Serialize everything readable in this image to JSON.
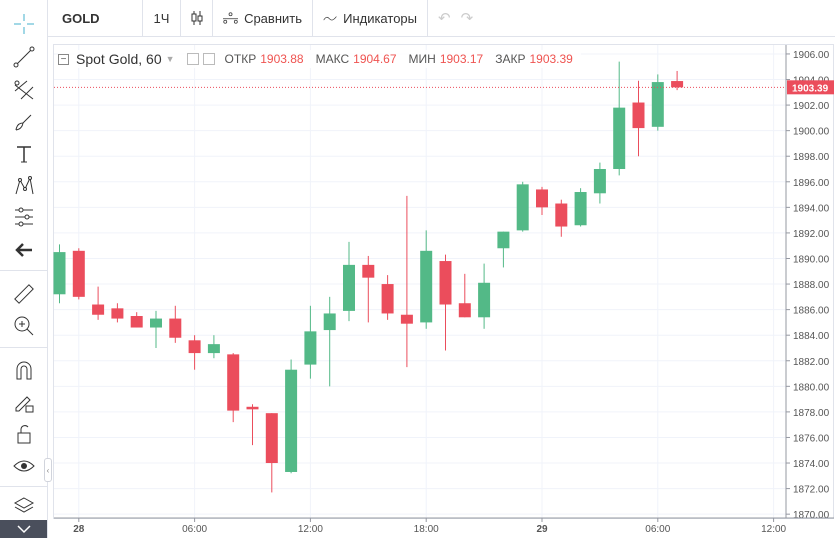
{
  "toolbar": {
    "symbol": "GOLD",
    "interval": "1Ч",
    "compare_label": "Сравнить",
    "indicators_label": "Индикаторы"
  },
  "legend": {
    "title": "Spot Gold, 60",
    "open_label": "ОТКР",
    "open": "1903.88",
    "high_label": "МАКС",
    "high": "1904.67",
    "low_label": "МИН",
    "low": "1903.17",
    "close_label": "ЗАКР",
    "close": "1903.39"
  },
  "sidebar": {
    "icons": [
      "crosshair-icon",
      "trend-line-icon",
      "fib-icon",
      "brush-icon",
      "text-icon",
      "pattern-icon",
      "measure-icon",
      "back-arrow-icon",
      "ruler-icon",
      "zoom-in-icon",
      "magnet-icon",
      "lock-drawing-icon",
      "unlock-icon",
      "eye-icon",
      "layers-icon"
    ]
  },
  "colors": {
    "up": "#53b987",
    "down": "#eb4d5c",
    "last_price_tag": "#eb4d5c"
  },
  "chart_data": {
    "type": "candlestick",
    "title": "Spot Gold, 60",
    "ylim": [
      1869.7,
      1906.7
    ],
    "y_ticks": [
      "1870.00",
      "1872.00",
      "1874.00",
      "1876.00",
      "1878.00",
      "1880.00",
      "1882.00",
      "1884.00",
      "1886.00",
      "1888.00",
      "1890.00",
      "1892.00",
      "1894.00",
      "1896.00",
      "1898.00",
      "1900.00",
      "1902.00",
      "1904.00",
      "1906.00"
    ],
    "x_ticks": [
      "28",
      "06:00",
      "12:00",
      "18:00",
      "29",
      "06:00",
      "12:00"
    ],
    "last_price": "1903.39",
    "grid": true,
    "candles": [
      {
        "o": 1887.2,
        "h": 1891.1,
        "l": 1886.5,
        "c": 1890.5
      },
      {
        "o": 1890.6,
        "h": 1890.8,
        "l": 1886.8,
        "c": 1887.0
      },
      {
        "o": 1886.4,
        "h": 1887.8,
        "l": 1885.2,
        "c": 1885.6
      },
      {
        "o": 1886.1,
        "h": 1886.5,
        "l": 1885.0,
        "c": 1885.3
      },
      {
        "o": 1885.5,
        "h": 1885.8,
        "l": 1884.6,
        "c": 1884.6
      },
      {
        "o": 1884.6,
        "h": 1885.9,
        "l": 1883.0,
        "c": 1885.3
      },
      {
        "o": 1885.3,
        "h": 1886.3,
        "l": 1883.4,
        "c": 1883.8
      },
      {
        "o": 1883.6,
        "h": 1884.0,
        "l": 1881.3,
        "c": 1882.6
      },
      {
        "o": 1882.6,
        "h": 1884.0,
        "l": 1882.2,
        "c": 1883.3
      },
      {
        "o": 1882.5,
        "h": 1882.6,
        "l": 1877.2,
        "c": 1878.1
      },
      {
        "o": 1878.4,
        "h": 1878.6,
        "l": 1875.4,
        "c": 1878.2
      },
      {
        "o": 1877.9,
        "h": 1877.9,
        "l": 1871.7,
        "c": 1874.0
      },
      {
        "o": 1873.3,
        "h": 1882.1,
        "l": 1873.2,
        "c": 1881.3
      },
      {
        "o": 1881.7,
        "h": 1886.3,
        "l": 1880.6,
        "c": 1884.3
      },
      {
        "o": 1884.4,
        "h": 1887.0,
        "l": 1880.0,
        "c": 1885.7
      },
      {
        "o": 1885.9,
        "h": 1891.3,
        "l": 1885.1,
        "c": 1889.5
      },
      {
        "o": 1889.5,
        "h": 1890.2,
        "l": 1885.0,
        "c": 1888.5
      },
      {
        "o": 1888.0,
        "h": 1888.7,
        "l": 1885.2,
        "c": 1885.7
      },
      {
        "o": 1885.6,
        "h": 1894.9,
        "l": 1881.5,
        "c": 1884.9
      },
      {
        "o": 1885.0,
        "h": 1892.2,
        "l": 1884.5,
        "c": 1890.6
      },
      {
        "o": 1889.8,
        "h": 1890.3,
        "l": 1882.8,
        "c": 1886.4
      },
      {
        "o": 1886.5,
        "h": 1888.8,
        "l": 1885.4,
        "c": 1885.4
      },
      {
        "o": 1885.4,
        "h": 1889.6,
        "l": 1884.5,
        "c": 1888.1
      },
      {
        "o": 1890.8,
        "h": 1892.1,
        "l": 1889.3,
        "c": 1892.1
      },
      {
        "o": 1892.2,
        "h": 1896.0,
        "l": 1892.1,
        "c": 1895.8
      },
      {
        "o": 1895.4,
        "h": 1895.6,
        "l": 1893.4,
        "c": 1894.0
      },
      {
        "o": 1894.3,
        "h": 1894.6,
        "l": 1891.7,
        "c": 1892.5
      },
      {
        "o": 1892.6,
        "h": 1895.5,
        "l": 1892.5,
        "c": 1895.2
      },
      {
        "o": 1895.1,
        "h": 1897.5,
        "l": 1894.3,
        "c": 1897.0
      },
      {
        "o": 1897.0,
        "h": 1905.4,
        "l": 1896.5,
        "c": 1901.8
      },
      {
        "o": 1902.2,
        "h": 1903.9,
        "l": 1898.0,
        "c": 1900.2
      },
      {
        "o": 1900.3,
        "h": 1904.4,
        "l": 1900.0,
        "c": 1903.8
      },
      {
        "o": 1903.88,
        "h": 1904.67,
        "l": 1903.17,
        "c": 1903.39
      }
    ]
  }
}
